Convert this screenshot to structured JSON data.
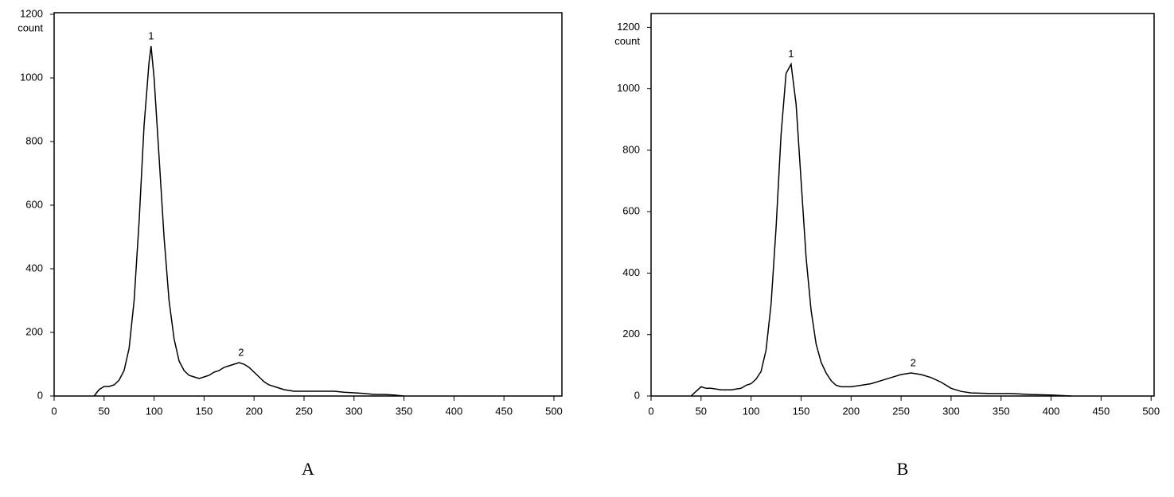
{
  "chart_data": [
    {
      "type": "line",
      "label": "A",
      "y_label": "count",
      "color": "#000000",
      "x": [
        40,
        45,
        50,
        55,
        60,
        65,
        70,
        75,
        80,
        85,
        90,
        95,
        97,
        100,
        105,
        110,
        115,
        120,
        125,
        130,
        135,
        140,
        145,
        150,
        155,
        160,
        165,
        170,
        175,
        180,
        185,
        190,
        195,
        200,
        205,
        210,
        215,
        220,
        225,
        230,
        240,
        250,
        260,
        270,
        280,
        290,
        300,
        310,
        320,
        330,
        340,
        350
      ],
      "values": [
        0,
        20,
        30,
        30,
        35,
        50,
        80,
        150,
        300,
        550,
        850,
        1050,
        1100,
        1000,
        750,
        500,
        300,
        180,
        110,
        80,
        65,
        60,
        55,
        60,
        65,
        75,
        80,
        90,
        95,
        100,
        105,
        100,
        90,
        75,
        60,
        45,
        35,
        30,
        25,
        20,
        15,
        15,
        15,
        15,
        15,
        12,
        10,
        8,
        5,
        5,
        3,
        0
      ],
      "annotations": [
        {
          "text": "1",
          "x": 97,
          "y": 1100
        },
        {
          "text": "2",
          "x": 187,
          "y": 105
        }
      ],
      "xlim": [
        0,
        508
      ],
      "ylim": [
        0,
        1205
      ],
      "xticks": [
        0,
        50,
        100,
        150,
        200,
        250,
        300,
        350,
        400,
        450,
        500
      ],
      "yticks": [
        0,
        200,
        400,
        600,
        800,
        1000,
        1200
      ]
    },
    {
      "type": "line",
      "label": "B",
      "y_label": "count",
      "color": "#000000",
      "x": [
        40,
        45,
        50,
        55,
        60,
        70,
        80,
        90,
        95,
        100,
        105,
        110,
        115,
        120,
        125,
        130,
        135,
        140,
        145,
        150,
        155,
        160,
        165,
        170,
        175,
        180,
        185,
        190,
        200,
        210,
        220,
        230,
        240,
        250,
        260,
        270,
        280,
        290,
        300,
        310,
        320,
        340,
        360,
        380,
        400,
        420
      ],
      "values": [
        0,
        15,
        30,
        25,
        25,
        20,
        20,
        25,
        35,
        40,
        55,
        80,
        150,
        300,
        550,
        850,
        1050,
        1080,
        950,
        700,
        450,
        280,
        170,
        110,
        75,
        50,
        35,
        30,
        30,
        35,
        40,
        50,
        60,
        70,
        75,
        70,
        60,
        45,
        25,
        15,
        10,
        8,
        8,
        5,
        3,
        0
      ],
      "annotations": [
        {
          "text": "1",
          "x": 140,
          "y": 1080
        },
        {
          "text": "2",
          "x": 262,
          "y": 75
        }
      ],
      "xlim": [
        0,
        503
      ],
      "ylim": [
        0,
        1245
      ],
      "xticks": [
        0,
        50,
        100,
        150,
        200,
        250,
        300,
        350,
        400,
        450,
        500
      ],
      "yticks": [
        0,
        200,
        400,
        600,
        800,
        1000,
        1200
      ]
    }
  ]
}
